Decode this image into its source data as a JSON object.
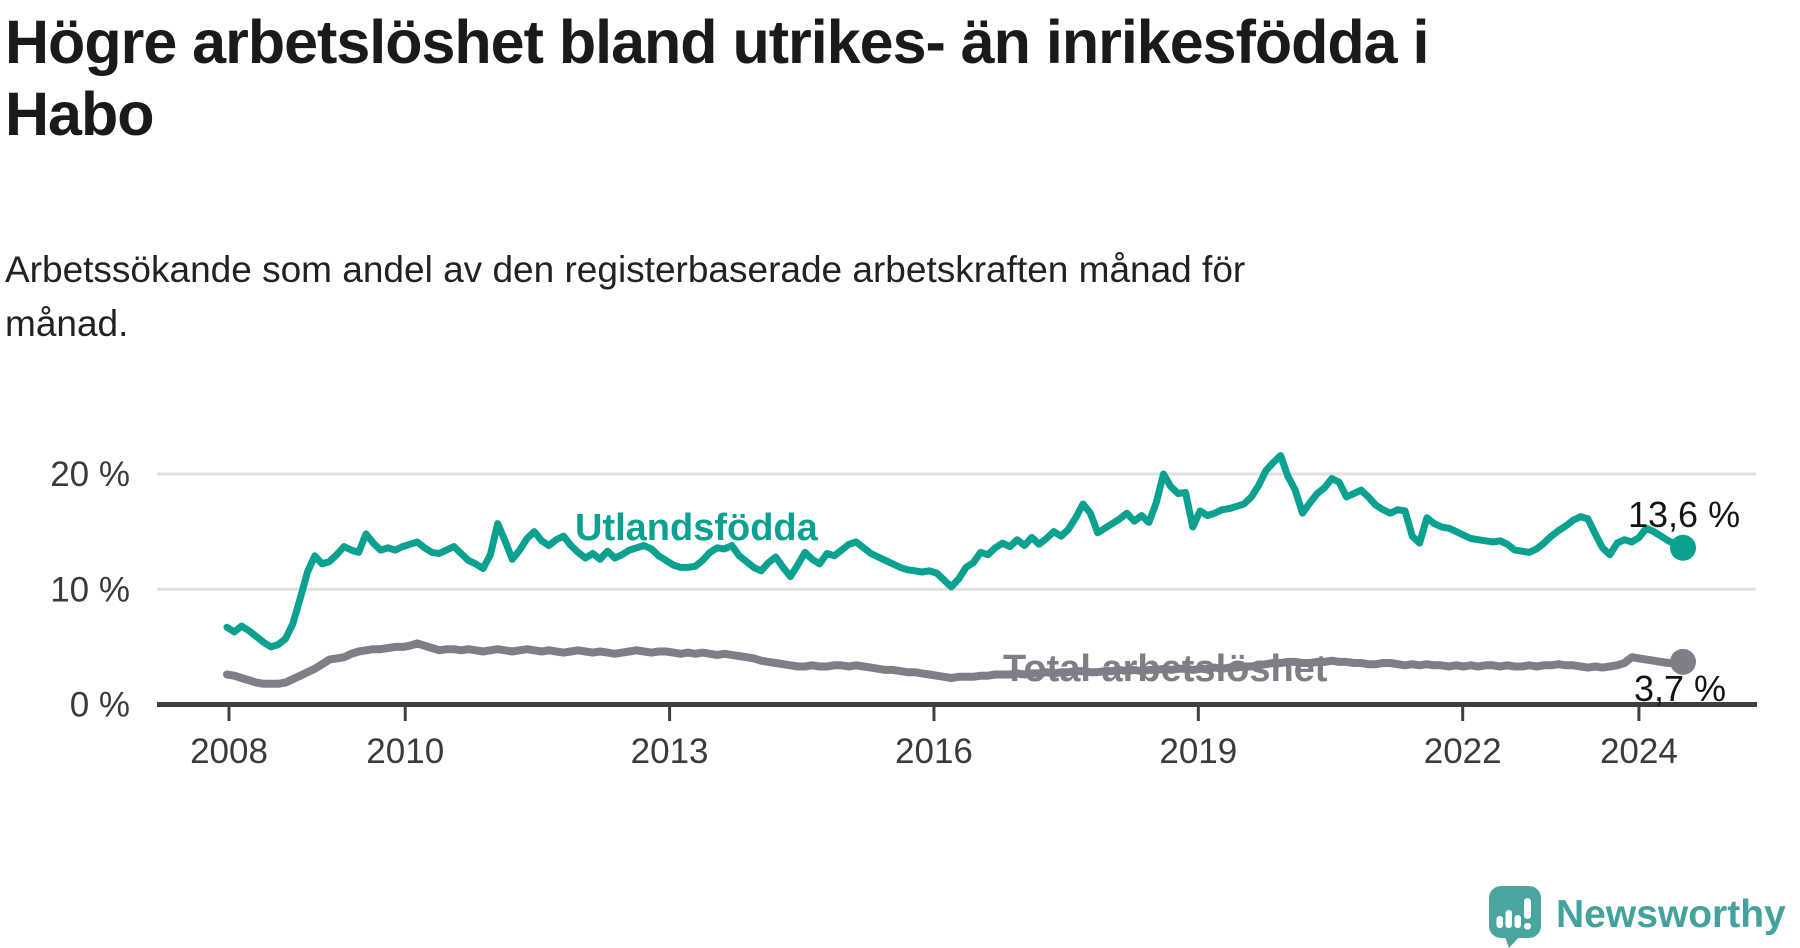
{
  "title": "Högre arbetslöshet bland utrikes- än inrikesfödda i\nHabo",
  "subtitle": "Arbetssökande som andel av den registerbaserade arbetskraften månad för\nmånad.",
  "colors": {
    "foreign_born_line": "#0aa191",
    "total_line": "#7e7e86",
    "grid": "#e0e0e0",
    "axis": "#3f3f3f",
    "tick_text": "#3b3b3b",
    "title_text": "#1a1a1a",
    "logo": "#43a29b"
  },
  "chart_data": {
    "type": "line",
    "unit": "%",
    "x_start": "2008-01",
    "x_end": "2024-07",
    "x_tick_years": [
      2008,
      2010,
      2013,
      2016,
      2019,
      2022,
      2024
    ],
    "y_ticks": [
      0,
      10,
      20
    ],
    "y_tick_labels": [
      "0 %",
      "10 %",
      "20 %"
    ],
    "ylim": [
      0,
      22.5
    ],
    "grid": "horizontal",
    "legend_position": "inline-on-line",
    "series": [
      {
        "name": "Utlandsfödda",
        "color": "#0aa191",
        "end_label": "13,6 %",
        "end_value": 13.6,
        "values": [
          6.7,
          6.3,
          6.8,
          6.4,
          5.9,
          5.4,
          5.0,
          5.2,
          5.7,
          7.0,
          9.2,
          11.5,
          12.9,
          12.2,
          12.4,
          13.0,
          13.7,
          13.4,
          13.2,
          14.8,
          14.0,
          13.4,
          13.6,
          13.4,
          13.7,
          13.9,
          14.1,
          13.6,
          13.2,
          13.1,
          13.4,
          13.7,
          13.1,
          12.5,
          12.2,
          11.8,
          13.0,
          15.7,
          14.2,
          12.6,
          13.4,
          14.4,
          15.0,
          14.2,
          13.8,
          14.3,
          14.6,
          13.8,
          13.2,
          12.7,
          13.1,
          12.6,
          13.3,
          12.7,
          13.0,
          13.4,
          13.6,
          13.8,
          13.5,
          12.9,
          12.5,
          12.1,
          11.9,
          11.9,
          12.0,
          12.5,
          13.2,
          13.6,
          13.5,
          13.8,
          12.9,
          12.4,
          11.9,
          11.6,
          12.3,
          12.8,
          11.9,
          11.1,
          12.1,
          13.2,
          12.6,
          12.2,
          13.1,
          12.9,
          13.4,
          13.9,
          14.1,
          13.6,
          13.1,
          12.8,
          12.5,
          12.2,
          11.9,
          11.7,
          11.6,
          11.5,
          11.6,
          11.4,
          10.8,
          10.2,
          10.9,
          11.9,
          12.3,
          13.2,
          13.0,
          13.6,
          14.0,
          13.7,
          14.3,
          13.8,
          14.5,
          13.9,
          14.4,
          15.0,
          14.6,
          15.2,
          16.2,
          17.4,
          16.6,
          14.9,
          15.3,
          15.7,
          16.1,
          16.6,
          15.9,
          16.4,
          15.8,
          17.5,
          20.0,
          18.9,
          18.3,
          18.4,
          15.4,
          16.8,
          16.4,
          16.6,
          16.9,
          17.0,
          17.2,
          17.4,
          18.0,
          19.0,
          20.3,
          21.0,
          21.6,
          19.8,
          18.6,
          16.6,
          17.5,
          18.3,
          18.8,
          19.6,
          19.3,
          18.0,
          18.3,
          18.6,
          18.0,
          17.3,
          16.9,
          16.6,
          16.9,
          16.8,
          14.6,
          14.0,
          16.2,
          15.7,
          15.4,
          15.3,
          15.0,
          14.7,
          14.4,
          14.3,
          14.2,
          14.1,
          14.2,
          13.9,
          13.4,
          13.3,
          13.2,
          13.5,
          14.0,
          14.6,
          15.1,
          15.5,
          16.0,
          16.3,
          16.1,
          14.8,
          13.6,
          13.0,
          14.0,
          14.3,
          14.1,
          14.5,
          15.3,
          15.0,
          14.6,
          14.2,
          13.9,
          13.6
        ]
      },
      {
        "name": "Total arbetslöshet",
        "color": "#7e7e86",
        "end_label": "3,7 %",
        "end_value": 3.7,
        "values": [
          2.6,
          2.5,
          2.3,
          2.1,
          1.9,
          1.8,
          1.8,
          1.8,
          1.9,
          2.2,
          2.5,
          2.8,
          3.1,
          3.5,
          3.9,
          4.0,
          4.1,
          4.4,
          4.6,
          4.7,
          4.8,
          4.8,
          4.9,
          5.0,
          5.0,
          5.1,
          5.3,
          5.1,
          4.9,
          4.7,
          4.8,
          4.8,
          4.7,
          4.8,
          4.7,
          4.6,
          4.7,
          4.8,
          4.7,
          4.6,
          4.7,
          4.8,
          4.7,
          4.6,
          4.7,
          4.6,
          4.5,
          4.6,
          4.7,
          4.6,
          4.5,
          4.6,
          4.5,
          4.4,
          4.5,
          4.6,
          4.7,
          4.6,
          4.5,
          4.6,
          4.6,
          4.5,
          4.4,
          4.5,
          4.4,
          4.5,
          4.4,
          4.3,
          4.4,
          4.3,
          4.2,
          4.1,
          4.0,
          3.8,
          3.7,
          3.6,
          3.5,
          3.4,
          3.3,
          3.3,
          3.4,
          3.3,
          3.3,
          3.4,
          3.4,
          3.3,
          3.4,
          3.3,
          3.2,
          3.1,
          3.0,
          3.0,
          2.9,
          2.8,
          2.8,
          2.7,
          2.6,
          2.5,
          2.4,
          2.3,
          2.4,
          2.4,
          2.4,
          2.5,
          2.5,
          2.6,
          2.6,
          2.6,
          2.7,
          2.6,
          2.7,
          2.7,
          2.8,
          2.7,
          2.8,
          2.8,
          2.9,
          2.9,
          2.8,
          2.8,
          2.9,
          2.9,
          3.0,
          2.9,
          3.0,
          2.9,
          3.0,
          3.0,
          3.1,
          3.0,
          3.1,
          3.1,
          3.0,
          3.1,
          3.1,
          3.2,
          3.1,
          3.2,
          3.2,
          3.3,
          3.3,
          3.4,
          3.5,
          3.6,
          3.6,
          3.7,
          3.7,
          3.6,
          3.6,
          3.7,
          3.7,
          3.8,
          3.7,
          3.7,
          3.6,
          3.6,
          3.5,
          3.5,
          3.6,
          3.6,
          3.5,
          3.4,
          3.5,
          3.4,
          3.5,
          3.4,
          3.4,
          3.3,
          3.4,
          3.3,
          3.4,
          3.3,
          3.4,
          3.4,
          3.3,
          3.4,
          3.3,
          3.3,
          3.4,
          3.3,
          3.4,
          3.4,
          3.5,
          3.4,
          3.4,
          3.3,
          3.2,
          3.3,
          3.2,
          3.3,
          3.4,
          3.6,
          4.1,
          4.0,
          3.9,
          3.8,
          3.7,
          3.6,
          3.6,
          3.7
        ]
      }
    ]
  },
  "branding": {
    "wordmark": "Newsworthy",
    "icon": "newsworthy-speech-bubble-chart-icon"
  }
}
